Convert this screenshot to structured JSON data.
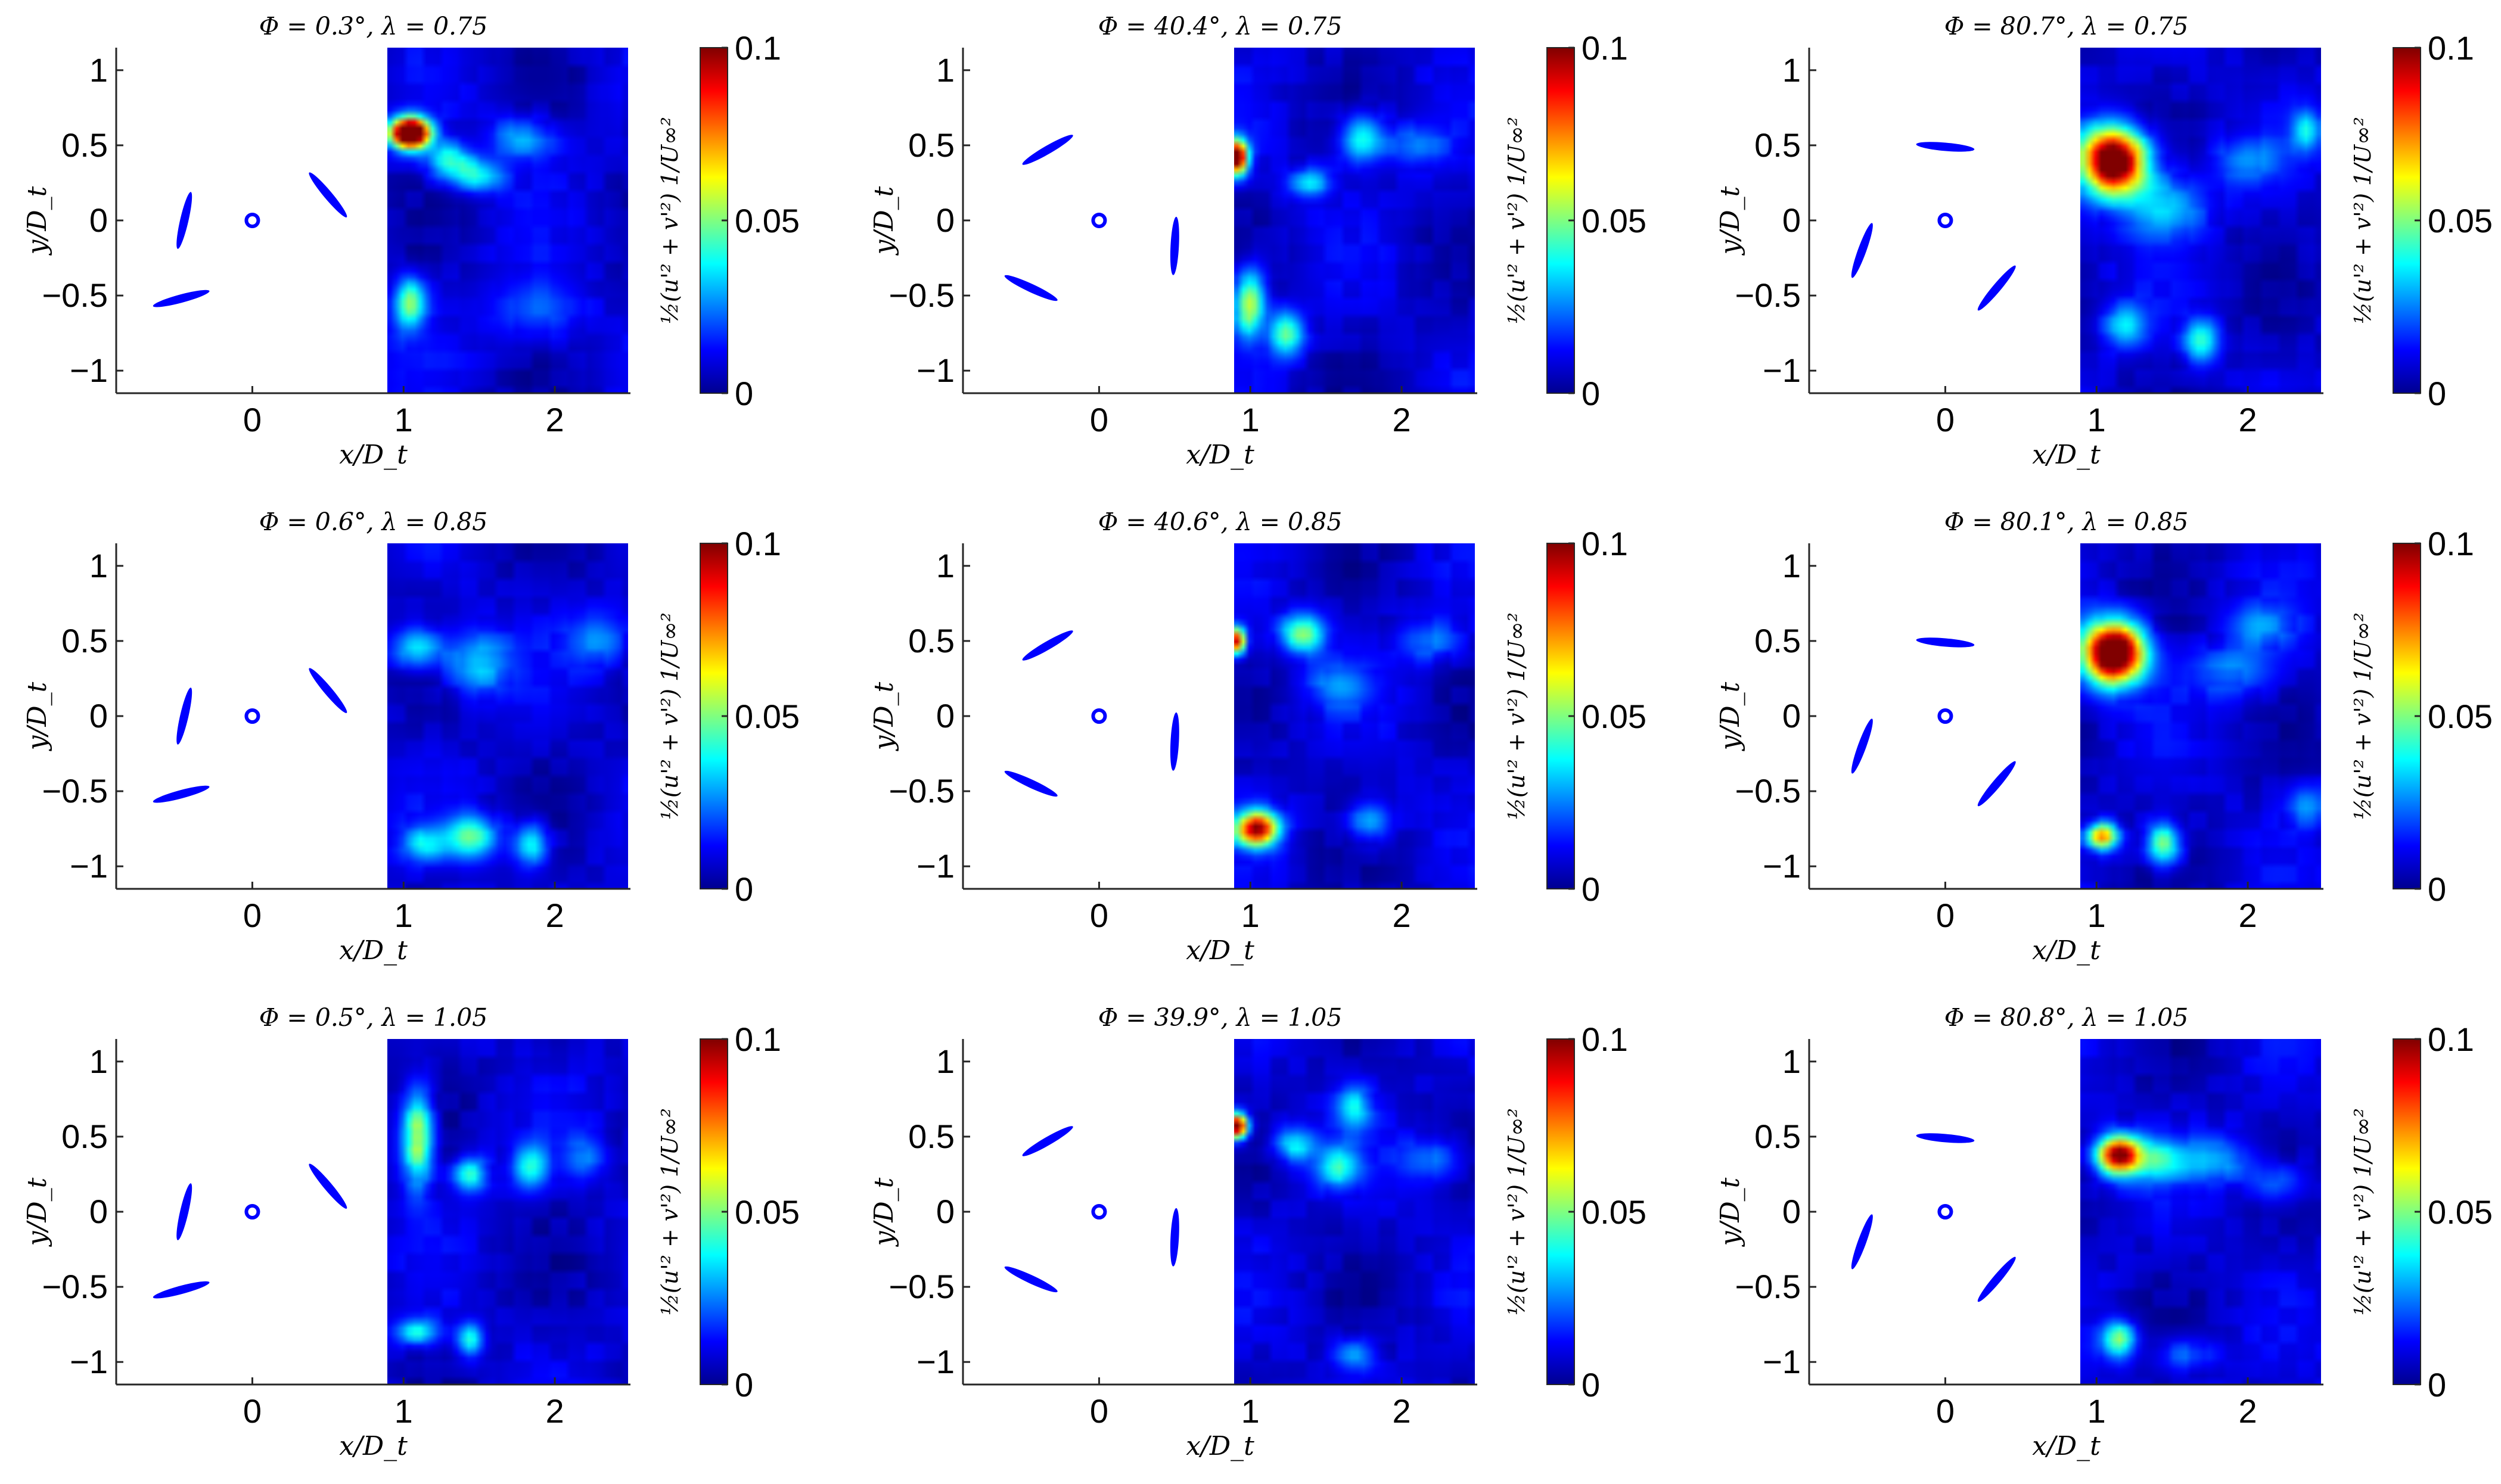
{
  "chart_data": {
    "type": "heatmap",
    "layout": {
      "rows": 3,
      "cols": 3
    },
    "colormap": "jet",
    "xlabel": "x/D_t",
    "ylabel": "y/D_t",
    "colorbar_label": "½(u'² + v'²) 1/U∞²",
    "clim": [
      0,
      0.1
    ],
    "colorbar_ticks": [
      "0",
      "0.05",
      "0.1"
    ],
    "xlim": [
      -0.9,
      2.5
    ],
    "ylim": [
      -1.15,
      1.15
    ],
    "xticks": [
      "0",
      "1",
      "2"
    ],
    "yticks": [
      "-1",
      "-0.5",
      "0",
      "0.5",
      "1"
    ],
    "field_x_range": [
      0.9,
      2.5
    ],
    "panels": [
      {
        "title": "Φ = 0.3°, λ = 0.75",
        "phase_deg": 0.3,
        "tsr": 0.75,
        "blades": [
          [
            0.5,
            0.17,
            130
          ],
          [
            -0.45,
            0.0,
            77
          ],
          [
            -0.47,
            -0.52,
            15
          ]
        ],
        "hotspots": [
          [
            1.05,
            0.58,
            0.09,
            0.07,
            0.16
          ],
          [
            1.05,
            -0.55,
            0.07,
            0.12,
            0.05
          ],
          [
            1.3,
            0.4,
            0.1,
            0.08,
            0.04
          ],
          [
            1.5,
            0.3,
            0.12,
            0.08,
            0.035
          ],
          [
            1.8,
            0.55,
            0.15,
            0.1,
            0.025
          ],
          [
            1.9,
            -0.6,
            0.2,
            0.15,
            0.02
          ]
        ]
      },
      {
        "title": "Φ = 40.4°, λ = 0.75",
        "phase_deg": 40.4,
        "tsr": 0.75,
        "blades": [
          [
            0.5,
            -0.17,
            87
          ],
          [
            -0.34,
            0.47,
            30
          ],
          [
            -0.45,
            -0.45,
            -25
          ]
        ],
        "hotspots": [
          [
            0.92,
            0.42,
            0.05,
            0.08,
            0.12
          ],
          [
            1.0,
            -0.55,
            0.07,
            0.15,
            0.06
          ],
          [
            1.25,
            -0.75,
            0.08,
            0.1,
            0.045
          ],
          [
            1.75,
            0.55,
            0.1,
            0.12,
            0.04
          ],
          [
            1.4,
            0.25,
            0.1,
            0.07,
            0.03
          ],
          [
            2.1,
            0.5,
            0.15,
            0.1,
            0.02
          ]
        ]
      },
      {
        "title": "Φ = 80.7°, λ = 0.75",
        "phase_deg": 80.7,
        "tsr": 0.75,
        "blades": [
          [
            0.0,
            0.49,
            -5
          ],
          [
            -0.55,
            -0.2,
            70
          ],
          [
            0.34,
            -0.45,
            50
          ]
        ],
        "hotspots": [
          [
            1.12,
            0.4,
            0.15,
            0.15,
            0.13
          ],
          [
            1.45,
            0.1,
            0.2,
            0.15,
            0.03
          ],
          [
            1.7,
            -0.8,
            0.08,
            0.1,
            0.04
          ],
          [
            1.2,
            -0.7,
            0.1,
            0.1,
            0.03
          ],
          [
            2.4,
            0.6,
            0.06,
            0.1,
            0.035
          ],
          [
            2.0,
            0.4,
            0.15,
            0.1,
            0.02
          ]
        ]
      },
      {
        "title": "Φ = 0.6°, λ = 0.85",
        "phase_deg": 0.6,
        "tsr": 0.85,
        "blades": [
          [
            0.5,
            0.17,
            130
          ],
          [
            -0.45,
            0.0,
            77
          ],
          [
            -0.47,
            -0.52,
            15
          ]
        ],
        "hotspots": [
          [
            1.1,
            0.45,
            0.12,
            0.1,
            0.035
          ],
          [
            1.5,
            0.35,
            0.15,
            0.15,
            0.03
          ],
          [
            1.45,
            -0.8,
            0.12,
            0.1,
            0.045
          ],
          [
            1.85,
            -0.85,
            0.08,
            0.1,
            0.04
          ],
          [
            1.15,
            -0.85,
            0.1,
            0.08,
            0.03
          ],
          [
            2.3,
            0.5,
            0.15,
            0.12,
            0.02
          ]
        ]
      },
      {
        "title": "Φ = 40.6°, λ = 0.85",
        "phase_deg": 40.6,
        "tsr": 0.85,
        "blades": [
          [
            0.5,
            -0.17,
            87
          ],
          [
            -0.34,
            0.47,
            30
          ],
          [
            -0.45,
            -0.45,
            -25
          ]
        ],
        "hotspots": [
          [
            0.92,
            0.5,
            0.04,
            0.06,
            0.1
          ],
          [
            1.05,
            -0.75,
            0.1,
            0.08,
            0.1
          ],
          [
            1.35,
            0.55,
            0.1,
            0.09,
            0.05
          ],
          [
            1.8,
            -0.7,
            0.1,
            0.1,
            0.03
          ],
          [
            1.6,
            0.2,
            0.15,
            0.1,
            0.02
          ],
          [
            2.2,
            0.5,
            0.15,
            0.1,
            0.02
          ]
        ]
      },
      {
        "title": "Φ = 80.1°, λ = 0.85",
        "phase_deg": 80.1,
        "tsr": 0.85,
        "blades": [
          [
            0.0,
            0.49,
            -5
          ],
          [
            -0.55,
            -0.2,
            70
          ],
          [
            0.34,
            -0.45,
            50
          ]
        ],
        "hotspots": [
          [
            1.12,
            0.42,
            0.14,
            0.14,
            0.14
          ],
          [
            1.05,
            -0.8,
            0.07,
            0.06,
            0.08
          ],
          [
            1.45,
            -0.85,
            0.08,
            0.1,
            0.05
          ],
          [
            1.9,
            0.3,
            0.2,
            0.12,
            0.02
          ],
          [
            2.1,
            0.6,
            0.15,
            0.1,
            0.02
          ],
          [
            2.4,
            -0.6,
            0.1,
            0.1,
            0.02
          ]
        ]
      },
      {
        "title": "Φ = 0.5°, λ = 1.05",
        "phase_deg": 0.5,
        "tsr": 1.05,
        "blades": [
          [
            0.5,
            0.17,
            130
          ],
          [
            -0.45,
            0.0,
            77
          ],
          [
            -0.47,
            -0.52,
            15
          ]
        ],
        "hotspots": [
          [
            1.1,
            0.5,
            0.07,
            0.22,
            0.06
          ],
          [
            1.45,
            0.25,
            0.08,
            0.08,
            0.04
          ],
          [
            1.85,
            0.3,
            0.08,
            0.1,
            0.035
          ],
          [
            1.1,
            -0.8,
            0.1,
            0.06,
            0.035
          ],
          [
            1.45,
            -0.85,
            0.06,
            0.08,
            0.04
          ],
          [
            2.2,
            0.35,
            0.1,
            0.1,
            0.02
          ]
        ]
      },
      {
        "title": "Φ = 39.9°, λ = 1.05",
        "phase_deg": 39.9,
        "tsr": 1.05,
        "blades": [
          [
            0.5,
            -0.17,
            87
          ],
          [
            -0.34,
            0.47,
            30
          ],
          [
            -0.45,
            -0.45,
            -25
          ]
        ],
        "hotspots": [
          [
            0.92,
            0.57,
            0.05,
            0.06,
            0.12
          ],
          [
            1.3,
            0.45,
            0.1,
            0.08,
            0.035
          ],
          [
            1.6,
            0.3,
            0.1,
            0.1,
            0.035
          ],
          [
            1.7,
            0.7,
            0.08,
            0.1,
            0.03
          ],
          [
            1.7,
            -0.95,
            0.1,
            0.08,
            0.025
          ],
          [
            2.2,
            0.35,
            0.15,
            0.1,
            0.02
          ]
        ]
      },
      {
        "title": "Φ = 80.8°, λ = 1.05",
        "phase_deg": 80.8,
        "tsr": 1.05,
        "blades": [
          [
            0.0,
            0.49,
            -5
          ],
          [
            -0.55,
            -0.2,
            70
          ],
          [
            0.34,
            -0.45,
            50
          ]
        ],
        "hotspots": [
          [
            1.15,
            0.38,
            0.1,
            0.09,
            0.1
          ],
          [
            1.4,
            0.35,
            0.15,
            0.1,
            0.035
          ],
          [
            1.15,
            -0.85,
            0.08,
            0.09,
            0.05
          ],
          [
            1.8,
            0.35,
            0.15,
            0.1,
            0.025
          ],
          [
            2.2,
            0.2,
            0.15,
            0.1,
            0.02
          ],
          [
            1.6,
            -0.95,
            0.15,
            0.08,
            0.02
          ]
        ]
      }
    ]
  }
}
